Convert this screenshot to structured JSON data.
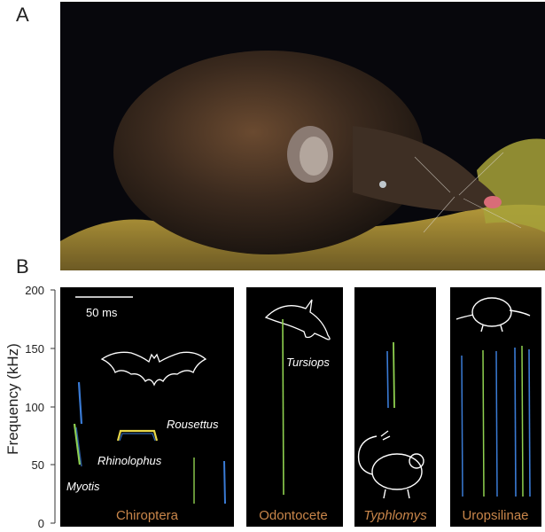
{
  "panel_a": {
    "letter": "A"
  },
  "panel_b": {
    "letter": "B",
    "ylabel": "Frequency (kHz)",
    "yticks": [
      "0",
      "50",
      "100",
      "150",
      "200"
    ],
    "scale_bar": "50 ms",
    "species": {
      "myotis": "Myotis",
      "rhinolophus": "Rhinolophus",
      "rousettus": "Rousettus",
      "tursiops": "Tursiops"
    },
    "groups": [
      "Chiroptera",
      "Odontocete",
      "Typhlomys",
      "Uropsilinae"
    ],
    "colors": {
      "group_label": "#c9864a",
      "panel_bg": "#000000",
      "trace_blue": "#3a7bd5",
      "trace_green": "#8fd14f",
      "trace_yellow": "#e8d84a"
    }
  }
}
